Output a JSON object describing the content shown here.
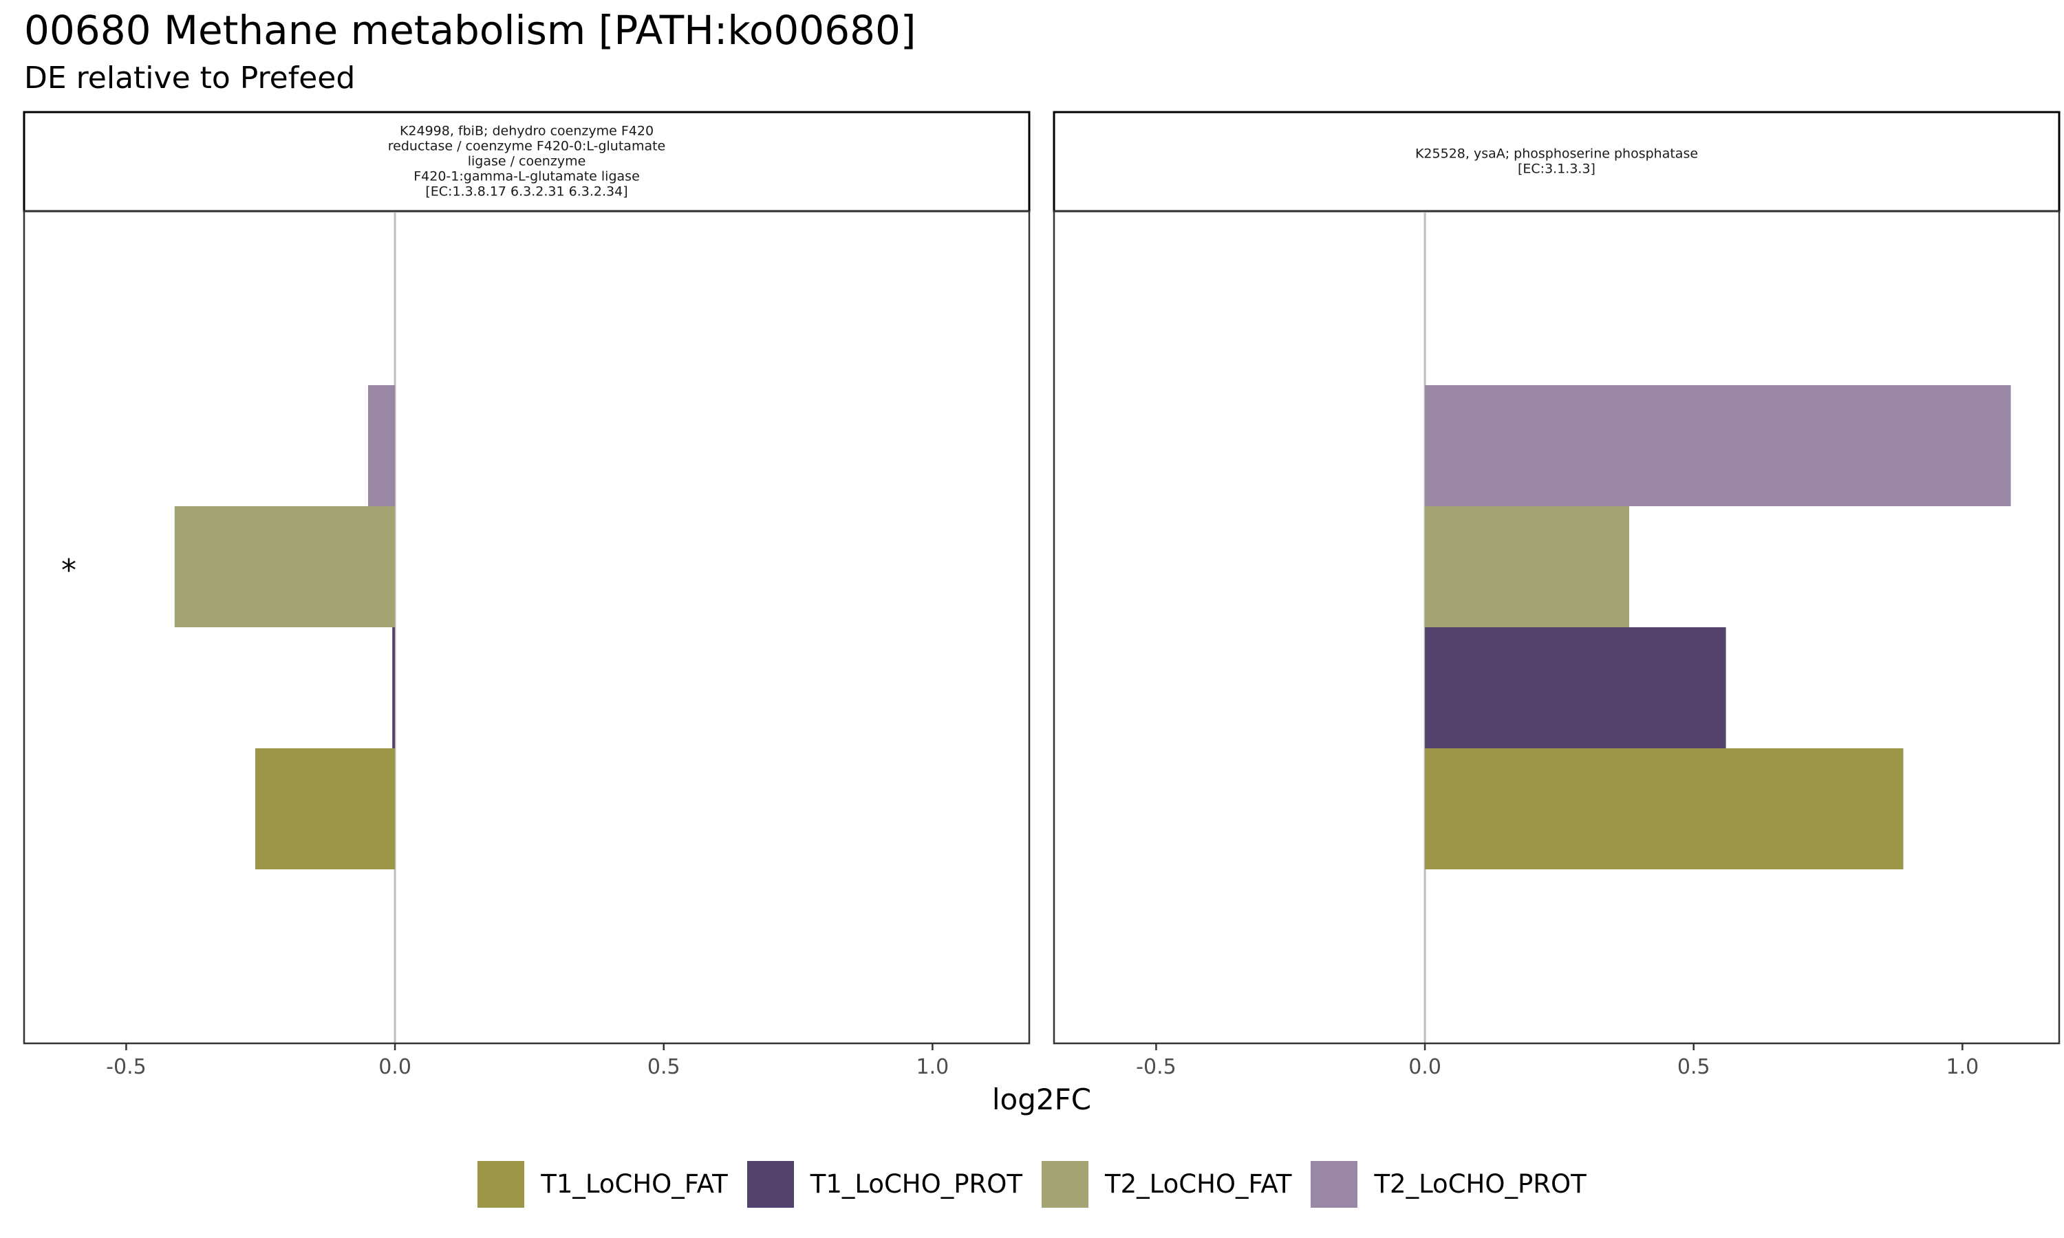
{
  "title": "00680 Methane metabolism [PATH:ko00680]",
  "subtitle": "DE relative to Prefeed",
  "chart_data": {
    "type": "bar",
    "orientation": "horizontal",
    "xlabel": "log2FC",
    "xlim": [
      -0.69,
      1.18
    ],
    "x_ticks": [
      -0.5,
      0.0,
      0.5,
      1.0
    ],
    "x_tick_labels": [
      "-0.5",
      "0.0",
      "0.5",
      "1.0"
    ],
    "grid": false,
    "legend_position": "bottom",
    "series": [
      {
        "name": "T1_LoCHO_FAT",
        "color": "#9C9648"
      },
      {
        "name": "T1_LoCHO_PROT",
        "color": "#52426C"
      },
      {
        "name": "T2_LoCHO_FAT",
        "color": "#A3A373"
      },
      {
        "name": "T2_LoCHO_PROT",
        "color": "#9A87A6"
      }
    ],
    "panels": [
      {
        "strip_lines": [
          "K24998, fbiB; dehydro coenzyme F420",
          "reductase / coenzyme F420-0:L-glutamate",
          "ligase / coenzyme",
          "F420-1:gamma-L-glutamate ligase",
          "[EC:1.3.8.17 6.3.2.31 6.3.2.34]"
        ],
        "values": [
          -0.26,
          -0.005,
          -0.41,
          -0.05
        ],
        "significance": [
          "",
          "",
          "*",
          ""
        ]
      },
      {
        "strip_lines": [
          "K25528, ysaA; phosphoserine phosphatase",
          "[EC:3.1.3.3]"
        ],
        "values": [
          0.89,
          0.56,
          0.38,
          1.09
        ],
        "significance": [
          "",
          "",
          "",
          ""
        ]
      }
    ]
  },
  "legend": {
    "items": [
      {
        "label": "T1_LoCHO_FAT",
        "color": "#9C9648"
      },
      {
        "label": "T1_LoCHO_PROT",
        "color": "#52426C"
      },
      {
        "label": "T2_LoCHO_FAT",
        "color": "#A3A373"
      },
      {
        "label": "T2_LoCHO_PROT",
        "color": "#9A87A6"
      }
    ]
  }
}
